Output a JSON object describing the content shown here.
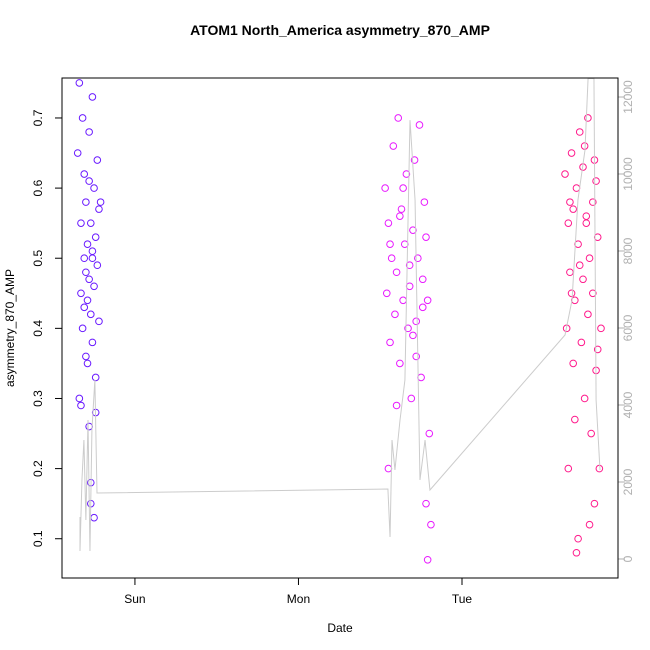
{
  "chart_data": {
    "type": "scatter",
    "title": "ATOM1 North_America asymmetry_870_AMP",
    "xlabel": "Date",
    "ylabel": "asymmetry_870_AMP",
    "xlim": [
      -0.446,
      2.954
    ],
    "xticks": [
      {
        "value": 0,
        "label": "Sun"
      },
      {
        "value": 1,
        "label": "Mon"
      },
      {
        "value": 2,
        "label": "Tue"
      }
    ],
    "ylim": [
      0.044,
      0.757
    ],
    "yticks": [
      0.1,
      0.2,
      0.3,
      0.4,
      0.5,
      0.6,
      0.7
    ],
    "y2lim": [
      -494,
      12494
    ],
    "y2ticks": [
      0,
      2000,
      4000,
      6000,
      8000,
      10000,
      12000
    ],
    "y2color": "#b0b0b0",
    "series": [
      {
        "style": "points",
        "color": "#6a1aff",
        "x": [
          -0.35,
          -0.34,
          -0.34,
          -0.33,
          -0.33,
          -0.32,
          -0.32,
          -0.31,
          -0.31,
          -0.3,
          -0.3,
          -0.3,
          -0.29,
          -0.29,
          -0.28,
          -0.28,
          -0.28,
          -0.27,
          -0.27,
          -0.27,
          -0.26,
          -0.26,
          -0.26,
          -0.25,
          -0.25,
          -0.25,
          -0.24,
          -0.24,
          -0.23,
          -0.23,
          -0.22,
          -0.22,
          -0.21,
          -0.27,
          -0.29,
          -0.31,
          -0.33,
          -0.26,
          -0.24,
          -0.28
        ],
        "values": [
          0.65,
          0.75,
          0.3,
          0.55,
          0.45,
          0.7,
          0.4,
          0.5,
          0.62,
          0.48,
          0.36,
          0.58,
          0.44,
          0.52,
          0.26,
          0.47,
          0.68,
          0.42,
          0.55,
          0.15,
          0.5,
          0.73,
          0.38,
          0.46,
          0.6,
          0.13,
          0.53,
          0.33,
          0.49,
          0.64,
          0.41,
          0.57,
          0.58,
          0.18,
          0.35,
          0.43,
          0.29,
          0.51,
          0.28,
          0.61
        ]
      },
      {
        "style": "points",
        "color": "#e81aff",
        "x": [
          1.53,
          1.54,
          1.55,
          1.55,
          1.56,
          1.57,
          1.58,
          1.59,
          1.6,
          1.61,
          1.62,
          1.63,
          1.64,
          1.65,
          1.66,
          1.67,
          1.68,
          1.69,
          1.7,
          1.71,
          1.72,
          1.73,
          1.74,
          1.75,
          1.76,
          1.77,
          1.78,
          1.79,
          1.8,
          1.81,
          1.56,
          1.6,
          1.64,
          1.68,
          1.72,
          1.76,
          1.79,
          1.62,
          1.7,
          1.78
        ],
        "values": [
          0.6,
          0.45,
          0.2,
          0.55,
          0.38,
          0.5,
          0.66,
          0.42,
          0.48,
          0.7,
          0.35,
          0.57,
          0.44,
          0.52,
          0.62,
          0.4,
          0.46,
          0.3,
          0.54,
          0.64,
          0.41,
          0.5,
          0.69,
          0.33,
          0.47,
          0.58,
          0.15,
          0.44,
          0.25,
          0.12,
          0.52,
          0.29,
          0.6,
          0.49,
          0.36,
          0.43,
          0.07,
          0.56,
          0.39,
          0.53
        ]
      },
      {
        "style": "points",
        "color": "#ff1a8c",
        "x": [
          2.63,
          2.64,
          2.65,
          2.65,
          2.66,
          2.67,
          2.68,
          2.68,
          2.69,
          2.7,
          2.71,
          2.71,
          2.72,
          2.73,
          2.74,
          2.74,
          2.75,
          2.76,
          2.77,
          2.77,
          2.78,
          2.79,
          2.8,
          2.8,
          2.81,
          2.82,
          2.83,
          2.83,
          2.84,
          2.85,
          2.66,
          2.69,
          2.72,
          2.75,
          2.78,
          2.81,
          2.7,
          2.76,
          2.82,
          2.67
        ],
        "values": [
          0.62,
          0.4,
          0.55,
          0.2,
          0.48,
          0.65,
          0.35,
          0.57,
          0.44,
          0.6,
          0.1,
          0.52,
          0.68,
          0.38,
          0.47,
          0.63,
          0.3,
          0.55,
          0.42,
          0.7,
          0.5,
          0.25,
          0.58,
          0.45,
          0.15,
          0.61,
          0.37,
          0.53,
          0.2,
          0.4,
          0.58,
          0.27,
          0.49,
          0.66,
          0.12,
          0.64,
          0.08,
          0.56,
          0.34,
          0.45
        ]
      },
      {
        "style": "line",
        "axis": "y2",
        "color": "#cccccc",
        "x": [
          -0.336,
          -0.336,
          -0.324,
          -0.312,
          -0.3,
          -0.287,
          -0.275,
          -0.263,
          -0.245,
          -0.232,
          1.547,
          1.56,
          1.572,
          1.59,
          1.621,
          1.651,
          1.682,
          1.713,
          1.743,
          1.774,
          1.804,
          2.63,
          2.673,
          2.709,
          2.752,
          2.771,
          2.807,
          2.82,
          2.844
        ],
        "values": [
          1090,
          208,
          2052,
          3090,
          1013,
          3610,
          208,
          3350,
          4650,
          1714,
          1818,
          571,
          3090,
          2312,
          3610,
          4650,
          11400,
          9325,
          2052,
          3090,
          1792,
          5818,
          6727,
          9325,
          10620,
          12480,
          12480,
          4130,
          2312
        ]
      }
    ]
  }
}
